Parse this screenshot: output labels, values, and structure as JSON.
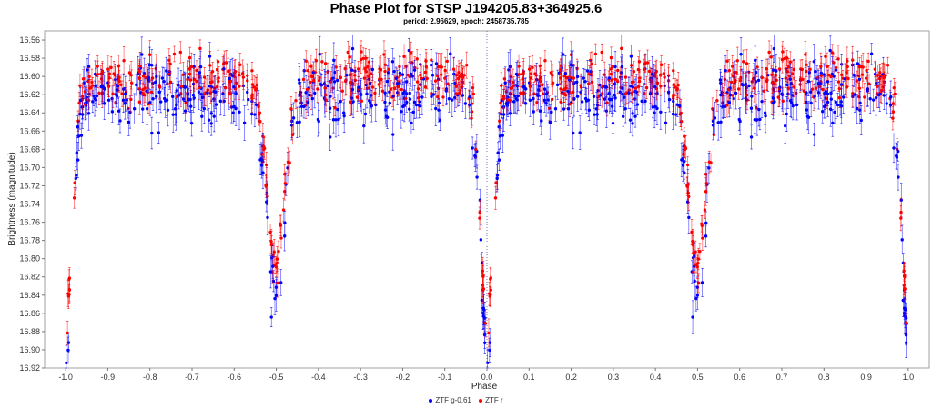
{
  "chart_data": {
    "type": "scatter",
    "title": "Phase Plot for STSP J194205.83+364925.6",
    "subtitle": "period: 2.96629, epoch: 2458735.785",
    "xlabel": "Phase",
    "ylabel": "Brightness (magnitude)",
    "xlim": [
      -1.05,
      1.05
    ],
    "ylim": [
      16.92,
      16.55
    ],
    "y_inverted": true,
    "x_ticks": [
      "-1.0",
      "-0.9",
      "-0.8",
      "-0.7",
      "-0.6",
      "-0.5",
      "-0.4",
      "-0.3",
      "-0.2",
      "-0.1",
      "0.0",
      "0.1",
      "0.2",
      "0.3",
      "0.4",
      "0.5",
      "0.6",
      "0.7",
      "0.8",
      "0.9",
      "1.0"
    ],
    "y_ticks": [
      "16.56",
      "16.58",
      "16.60",
      "16.62",
      "16.64",
      "16.66",
      "16.68",
      "16.70",
      "16.72",
      "16.74",
      "16.76",
      "16.78",
      "16.80",
      "16.82",
      "16.84",
      "16.86",
      "16.88",
      "16.90",
      "16.92"
    ],
    "grid": false,
    "error_bars": true,
    "legend_position": "bottom-center",
    "series": [
      {
        "name": "ZTF g-0.61",
        "color": "#0000ff",
        "light_curve": {
          "x": [
            0.0,
            0.004,
            0.008,
            0.012,
            0.016,
            0.02,
            0.025,
            0.03,
            0.035,
            0.04,
            0.05,
            0.1,
            0.2,
            0.3,
            0.4,
            0.45,
            0.46,
            0.47,
            0.48,
            0.485,
            0.49,
            0.5
          ],
          "y": [
            16.91,
            16.9,
            16.87,
            16.82,
            16.77,
            16.73,
            16.69,
            16.66,
            16.64,
            16.63,
            16.62,
            16.62,
            16.62,
            16.62,
            16.62,
            16.63,
            16.65,
            16.69,
            16.75,
            16.79,
            16.82,
            16.84
          ]
        },
        "scatter_sigma": 0.018,
        "error_bar": 0.015
      },
      {
        "name": "ZTF r",
        "color": "#ff0000",
        "light_curve": {
          "x": [
            0.0,
            0.004,
            0.008,
            0.012,
            0.016,
            0.02,
            0.025,
            0.03,
            0.035,
            0.04,
            0.05,
            0.1,
            0.2,
            0.3,
            0.4,
            0.45,
            0.46,
            0.47,
            0.48,
            0.485,
            0.49,
            0.5
          ],
          "y": [
            16.87,
            16.86,
            16.84,
            16.8,
            16.76,
            16.72,
            16.68,
            16.65,
            16.63,
            16.62,
            16.61,
            16.605,
            16.6,
            16.6,
            16.605,
            16.615,
            16.64,
            16.68,
            16.73,
            16.77,
            16.79,
            16.81
          ]
        },
        "scatter_sigma": 0.013,
        "error_bar": 0.012
      }
    ]
  }
}
